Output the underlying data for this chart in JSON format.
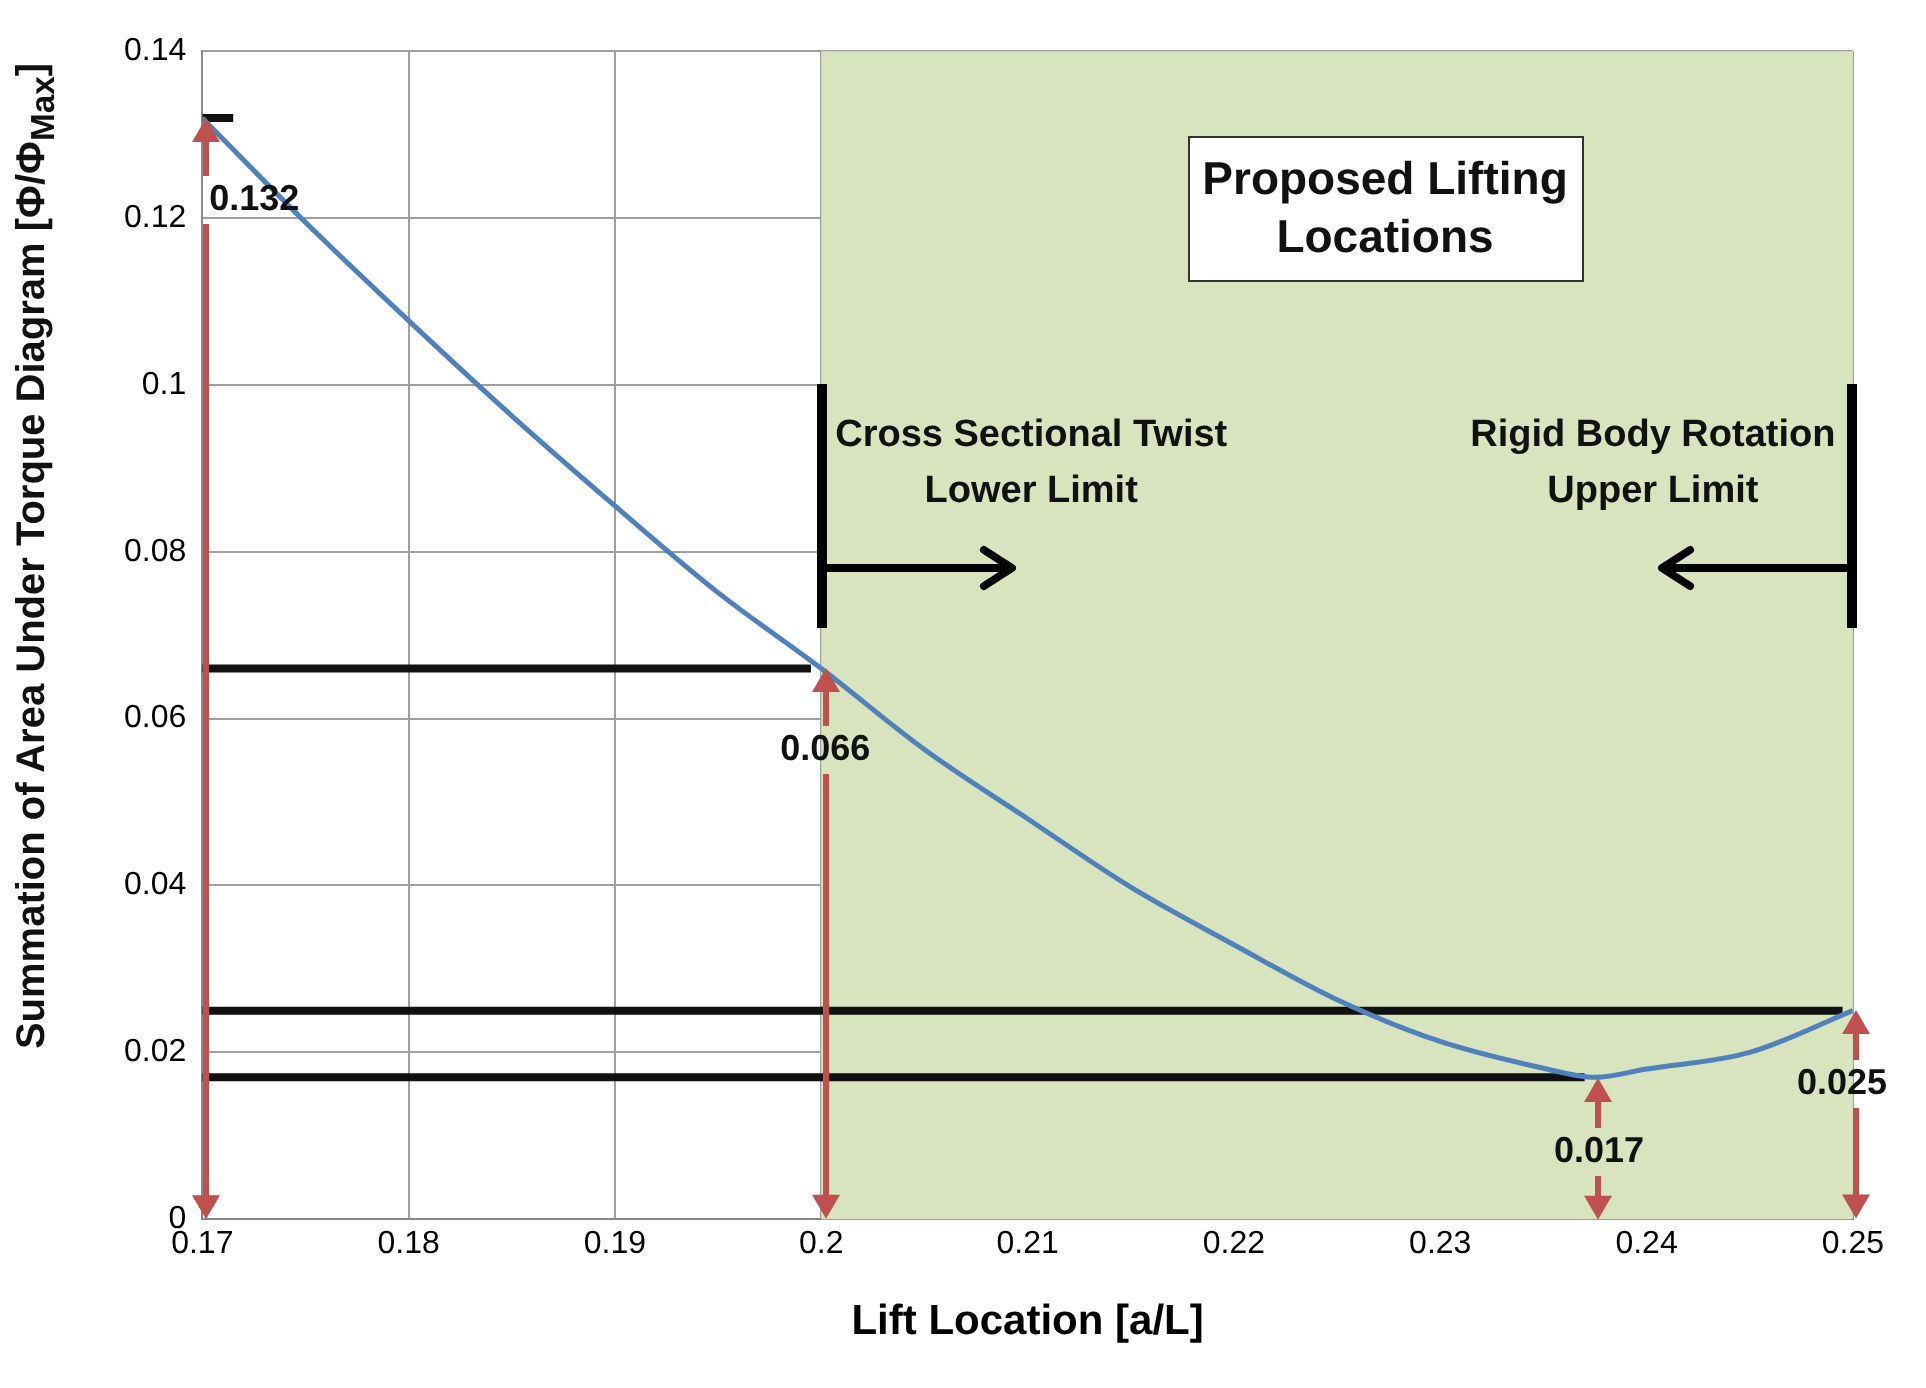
{
  "chart_data": {
    "type": "line",
    "xlabel": "Lift Location [a/L]",
    "ylabel": "Summation of Area Under Torque Diagram [Φ/Φ$_{Max}$]",
    "x": [
      0.17,
      0.175,
      0.18,
      0.185,
      0.19,
      0.195,
      0.2,
      0.205,
      0.21,
      0.215,
      0.22,
      0.225,
      0.23,
      0.235,
      0.2375,
      0.24,
      0.245,
      0.25
    ],
    "series": [
      {
        "color": "#4f81bd",
        "values": [
          0.132,
          0.1195,
          0.1077,
          0.0963,
          0.0855,
          0.0751,
          0.066,
          0.0563,
          0.048,
          0.0398,
          0.0329,
          0.0263,
          0.0213,
          0.0181,
          0.017,
          0.018,
          0.02,
          0.025
        ]
      },
      {
        "type": "line",
        "color": "#111111",
        "x": [
          0.17,
          0.1715
        ],
        "values": [
          0.132,
          0.132
        ]
      },
      {
        "type": "line",
        "color": "#111111",
        "x": [
          0.17,
          0.1995
        ],
        "values": [
          0.066,
          0.066
        ]
      },
      {
        "type": "line",
        "color": "#111111",
        "x": [
          0.17,
          0.2495
        ],
        "values": [
          0.025,
          0.025
        ]
      },
      {
        "type": "line",
        "color": "#111111",
        "x": [
          0.17,
          0.237
        ],
        "values": [
          0.017,
          0.017
        ]
      }
    ],
    "xlim": [
      0.17,
      0.25
    ],
    "xticks": [
      0.17,
      0.18,
      0.19,
      0.2,
      0.21,
      0.22,
      0.23,
      0.24,
      0.25
    ],
    "ylim": [
      0,
      0.14
    ],
    "yticks": [
      0,
      0.02,
      0.04,
      0.06,
      0.08,
      0.1,
      0.12,
      0.14
    ],
    "grid": true,
    "legend": false,
    "marker": "none",
    "line_style": "solid",
    "bands": [
      {
        "axis": "x",
        "from": 0.2,
        "to": 0.25,
        "color": "#d7e4bd"
      }
    ],
    "annotations": [
      "Proposed Lifting Locations",
      {
        "text": "Cross Sectional Twist Lower Limit",
        "x": 0.2,
        "y": 0.1
      },
      {
        "text": "Rigid Body Rotation Upper Limit",
        "x": 0.25,
        "y": 0.1
      },
      {
        "text": "0.132",
        "x": 0.17,
        "y": 0.132
      },
      {
        "text": "0.066",
        "x": 0.2,
        "y": 0.066
      },
      {
        "text": "0.017",
        "x": 0.2375,
        "y": 0.017
      },
      {
        "text": "0.025",
        "x": 0.25,
        "y": 0.025
      }
    ]
  }
}
